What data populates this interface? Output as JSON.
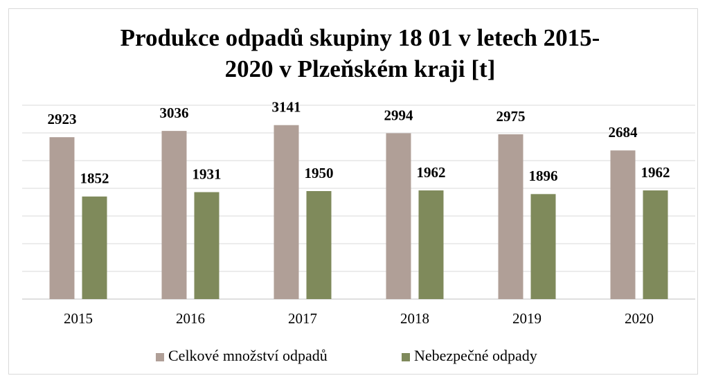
{
  "chart_data": {
    "type": "bar",
    "title": [
      "Produkce odpadů skupiny 18 01 v letech 2015-",
      "2020 v Plzeňském kraji [t]"
    ],
    "categories": [
      "2015",
      "2016",
      "2017",
      "2018",
      "2019",
      "2020"
    ],
    "series": [
      {
        "name": "Celkové množství odpadů",
        "color": "#b09f97",
        "values": [
          2923,
          3036,
          3141,
          2994,
          2975,
          2684
        ]
      },
      {
        "name": "Nebezpečné odpady",
        "color": "#7f8a5b",
        "values": [
          1852,
          1931,
          1950,
          1962,
          1896,
          1962
        ]
      }
    ],
    "ylim": [
      0,
      3500
    ],
    "yticks": [
      0,
      500,
      1000,
      1500,
      2000,
      2500,
      3000,
      3500
    ],
    "grid": true,
    "data_labels": true,
    "legend": "bottom"
  }
}
